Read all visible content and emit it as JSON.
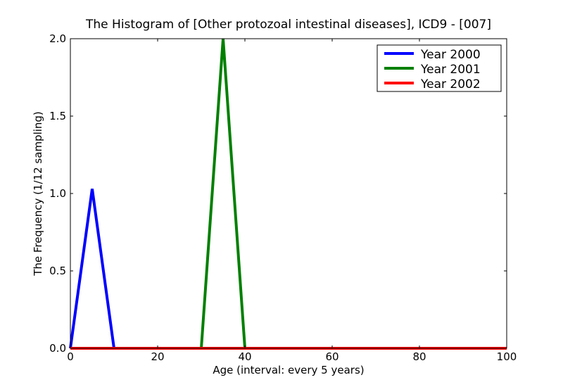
{
  "chart_data": {
    "type": "line",
    "title": "The Histogram of [Other protozoal intestinal diseases], ICD9 - [007]",
    "xlabel": "Age (interval: every 5 years)",
    "ylabel": "The Frequency (1/12 sampling)",
    "xlim": [
      0,
      100
    ],
    "ylim": [
      0,
      2.0
    ],
    "xticks": [
      "0",
      "20",
      "40",
      "60",
      "80",
      "100"
    ],
    "yticks": [
      "0.0",
      "0.5",
      "1.0",
      "1.5",
      "2.0"
    ],
    "grid": false,
    "legend_position": "top-right",
    "series": [
      {
        "name": "Year 2000",
        "color": "#0000ff",
        "x": [
          0,
          5,
          10,
          15,
          20,
          25,
          30,
          35,
          40,
          45,
          50,
          55,
          60,
          65,
          70,
          75,
          80,
          85,
          90,
          95,
          100
        ],
        "y": [
          0,
          1.03,
          0,
          0,
          0,
          0,
          0,
          0,
          0,
          0,
          0,
          0,
          0,
          0,
          0,
          0,
          0,
          0,
          0,
          0,
          0
        ]
      },
      {
        "name": "Year 2001",
        "color": "#008000",
        "x": [
          0,
          5,
          10,
          15,
          20,
          25,
          30,
          35,
          40,
          45,
          50,
          55,
          60,
          65,
          70,
          75,
          80,
          85,
          90,
          95,
          100
        ],
        "y": [
          0,
          0,
          0,
          0,
          0,
          0,
          0,
          2.0,
          0,
          0,
          0,
          0,
          0,
          0,
          0,
          0,
          0,
          0,
          0,
          0,
          0
        ]
      },
      {
        "name": "Year 2002",
        "color": "#ff0000",
        "x": [
          0,
          5,
          10,
          15,
          20,
          25,
          30,
          35,
          40,
          45,
          50,
          55,
          60,
          65,
          70,
          75,
          80,
          85,
          90,
          95,
          100
        ],
        "y": [
          0,
          0,
          0,
          0,
          0,
          0,
          0,
          0,
          0,
          0,
          0,
          0,
          0,
          0,
          0,
          0,
          0,
          0,
          0,
          0,
          0
        ]
      }
    ]
  }
}
